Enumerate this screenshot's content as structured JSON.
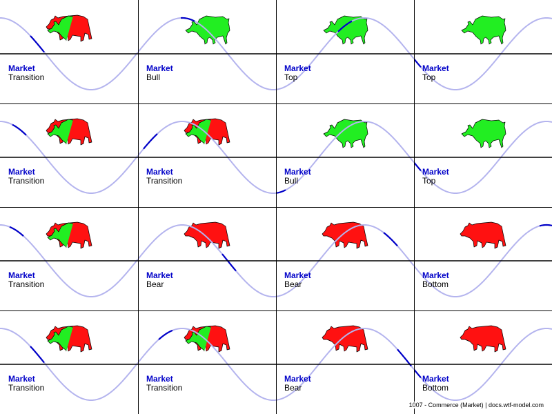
{
  "colors": {
    "wave": "#b4b4ee",
    "wave_highlight": "#0000c8",
    "caption_title": "#0000c8",
    "bull": "#22ee22",
    "bear": "#ff1111",
    "outline": "#000000"
  },
  "cards": [
    {
      "title": "Market",
      "phase": "Transition",
      "icon": "bull-bear-icon",
      "phase_position": 0.27
    },
    {
      "title": "Market",
      "phase": "Bull",
      "icon": "bull-icon",
      "phase_position": 0.36
    },
    {
      "title": "Market",
      "phase": "Top",
      "icon": "bull-icon",
      "phase_position": 0.5
    },
    {
      "title": "Market",
      "phase": "Top",
      "icon": "bull-icon",
      "phase_position": 0.0
    },
    {
      "title": "Market",
      "phase": "Transition",
      "icon": "bull-bear-icon",
      "phase_position": 0.14
    },
    {
      "title": "Market",
      "phase": "Transition",
      "icon": "bull-bear-icon",
      "phase_position": 0.09
    },
    {
      "title": "Market",
      "phase": "Bull",
      "icon": "bull-icon",
      "phase_position": 0.02
    },
    {
      "title": "Market",
      "phase": "Top",
      "icon": "bull-icon",
      "phase_position": 0.0
    },
    {
      "title": "Market",
      "phase": "Transition",
      "icon": "bull-bear-icon",
      "phase_position": 0.12
    },
    {
      "title": "Market",
      "phase": "Bear",
      "icon": "bear-icon",
      "phase_position": 0.66
    },
    {
      "title": "Market",
      "phase": "Bear",
      "icon": "bear-icon",
      "phase_position": 0.83
    },
    {
      "title": "Market",
      "phase": "Bottom",
      "icon": "bear-icon",
      "phase_position": 0.96
    },
    {
      "title": "Market",
      "phase": "Transition",
      "icon": "bull-bear-icon",
      "phase_position": 0.27
    },
    {
      "title": "Market",
      "phase": "Transition",
      "icon": "bull-bear-icon",
      "phase_position": 0.2
    },
    {
      "title": "Market",
      "phase": "Bear",
      "icon": "bear-icon",
      "phase_position": 0.93
    },
    {
      "title": "Market",
      "phase": "Bottom",
      "icon": "bear-icon",
      "phase_position": 0.0
    }
  ],
  "footer": "1007 - Commerce (Market) | docs.wtf-model.com"
}
